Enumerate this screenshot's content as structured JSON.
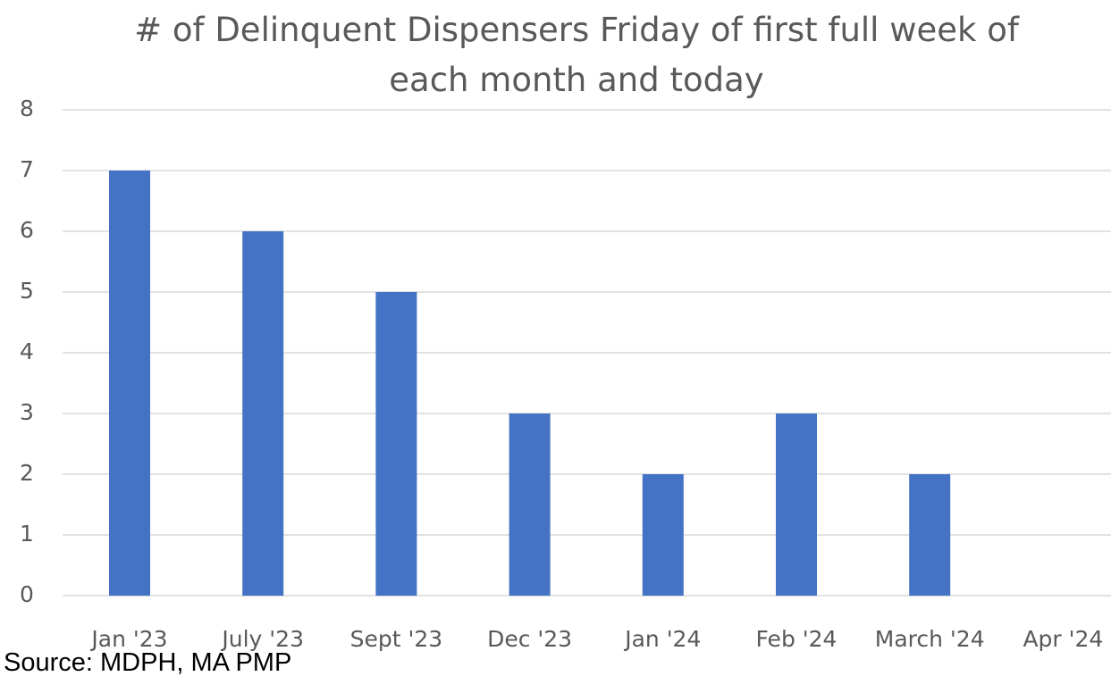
{
  "chart_data": {
    "type": "bar",
    "title": "# of Delinquent Dispensers Friday of first full week of each month and today",
    "categories": [
      "Jan '23",
      "July '23",
      "Sept '23",
      "Dec '23",
      "Jan '24",
      "Feb '24",
      "March '24",
      "Apr '24"
    ],
    "values": [
      7,
      6,
      5,
      3,
      2,
      3,
      2,
      0
    ],
    "color": "#4472c4",
    "ylim": [
      0,
      8
    ],
    "yticks": [
      0,
      1,
      2,
      3,
      4,
      5,
      6,
      7,
      8
    ],
    "grid": true,
    "source": "Source: MDPH, MA PMP"
  }
}
